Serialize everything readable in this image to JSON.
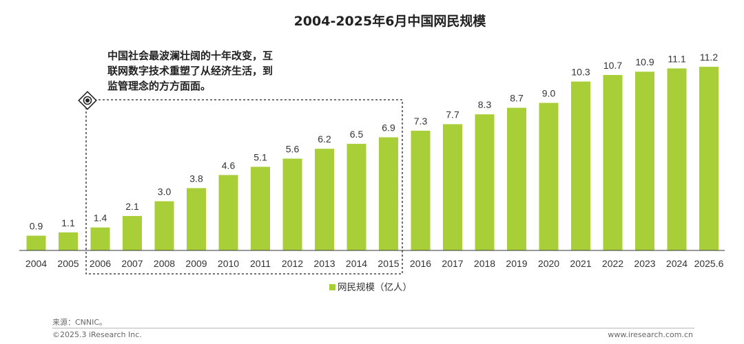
{
  "chart_data": {
    "type": "bar",
    "title": "2004-2025年6月中国网民规模",
    "categories": [
      "2004",
      "2005",
      "2006",
      "2007",
      "2008",
      "2009",
      "2010",
      "2011",
      "2012",
      "2013",
      "2014",
      "2015",
      "2016",
      "2017",
      "2018",
      "2019",
      "2020",
      "2021",
      "2022",
      "2023",
      "2024",
      "2025.6"
    ],
    "series": [
      {
        "name": "网民规模（亿人）",
        "values": [
          0.9,
          1.1,
          1.4,
          2.1,
          3.0,
          3.8,
          4.6,
          5.1,
          5.6,
          6.2,
          6.5,
          6.9,
          7.3,
          7.7,
          8.3,
          8.7,
          9.0,
          10.3,
          10.7,
          10.9,
          11.1,
          11.2
        ],
        "labels": [
          "0.9",
          "1.1",
          "1.4",
          "2.1",
          "3.0",
          "3.8",
          "4.6",
          "5.1",
          "5.6",
          "6.2",
          "6.5",
          "6.9",
          "7.3",
          "7.7",
          "8.3",
          "8.7",
          "9.0",
          "10.3",
          "10.7",
          "10.9",
          "11.1",
          "11.2"
        ]
      }
    ],
    "ylim": [
      0,
      12
    ],
    "xlabel": "",
    "ylabel": "",
    "grid": false,
    "legend": "bottom-center",
    "annotation": {
      "lines": [
        "中国社会最波澜壮阔的十年改变，互",
        "联网数字技术重塑了从经济生活，到",
        "监管理念的方方面面。"
      ],
      "range": [
        "2006",
        "2015"
      ]
    }
  },
  "colors": {
    "bar": "#A8CF38",
    "text": "#333333",
    "axis": "#333333"
  },
  "footer": {
    "source": "来源：CNNIC。",
    "copyright": "©2025.3 iResearch Inc.",
    "website": "www.iresearch.com.cn"
  }
}
